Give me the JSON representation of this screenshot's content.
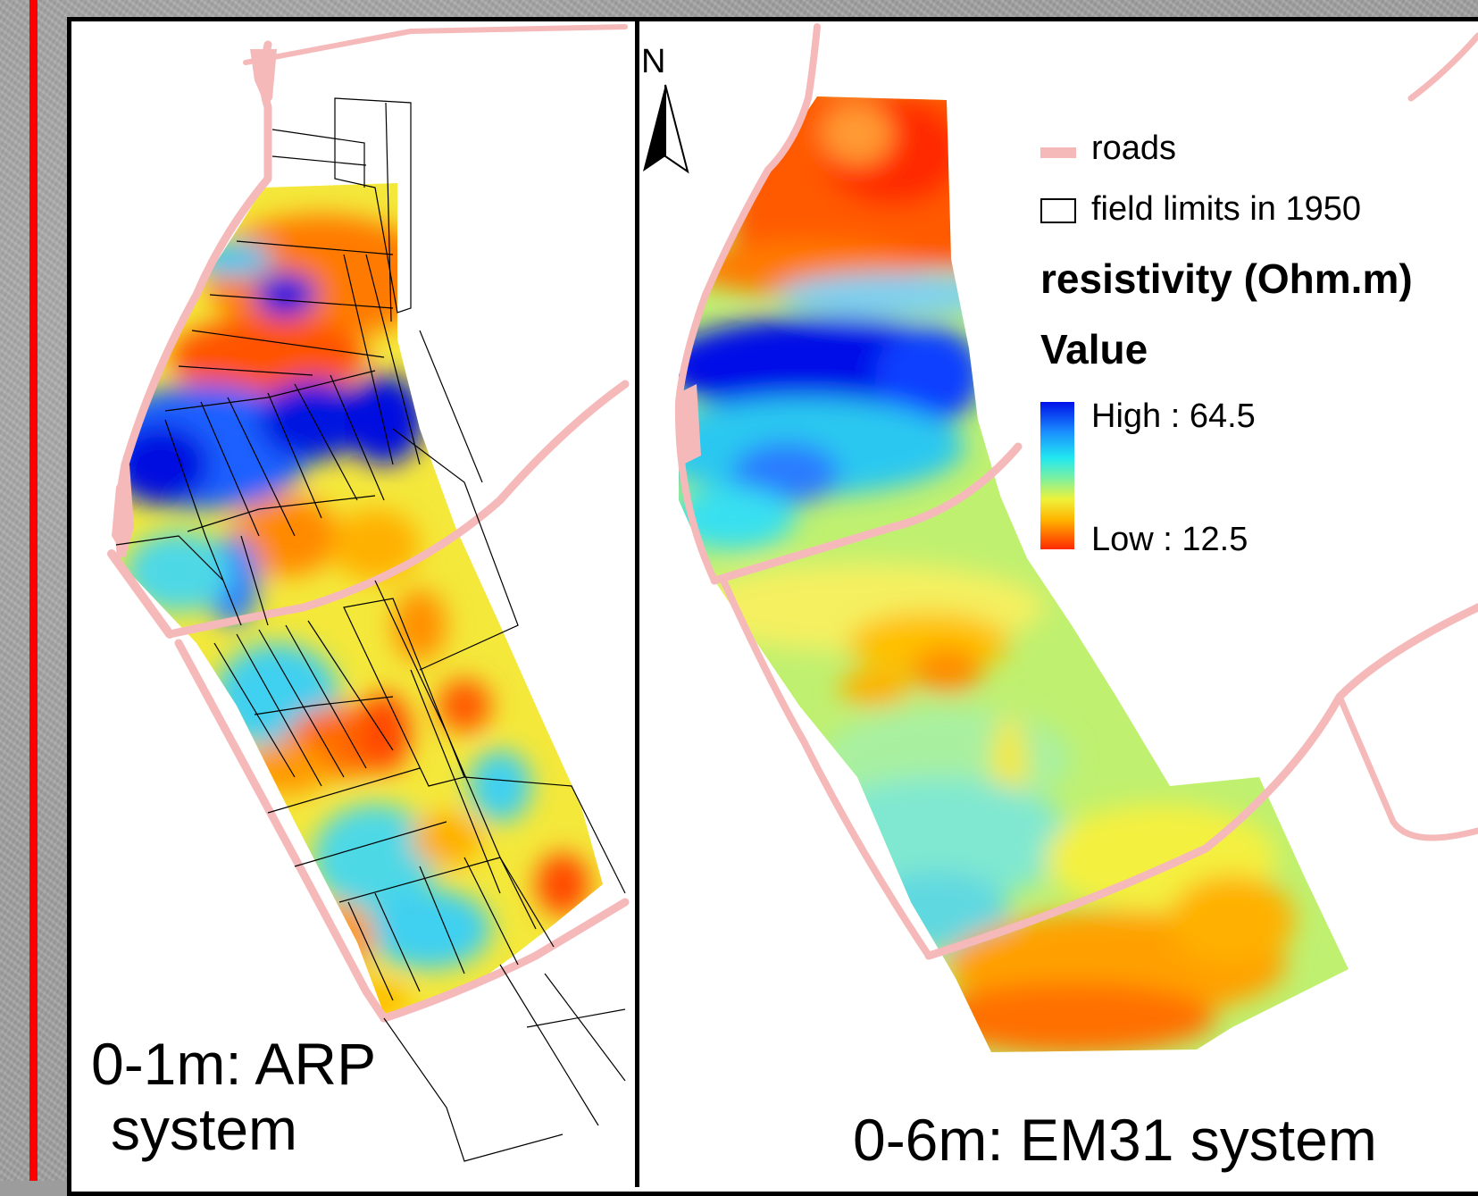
{
  "panels": {
    "left_label_line1": "0-1m: ARP",
    "left_label_line2": "system",
    "right_label": "0-6m: EM31 system"
  },
  "north_arrow": {
    "label": "N"
  },
  "legend": {
    "roads_label": "roads",
    "fields_label": "field limits in 1950",
    "title": "resistivity (Ohm.m)",
    "subtitle": "Value",
    "high_label": "High : 64.5",
    "low_label": "Low : 12.5",
    "colors": {
      "road": "#f6b9b9",
      "high": "#0010e8",
      "mid": "#22e8f0",
      "low_mid": "#eef23a",
      "low": "#ff2a00"
    }
  }
}
